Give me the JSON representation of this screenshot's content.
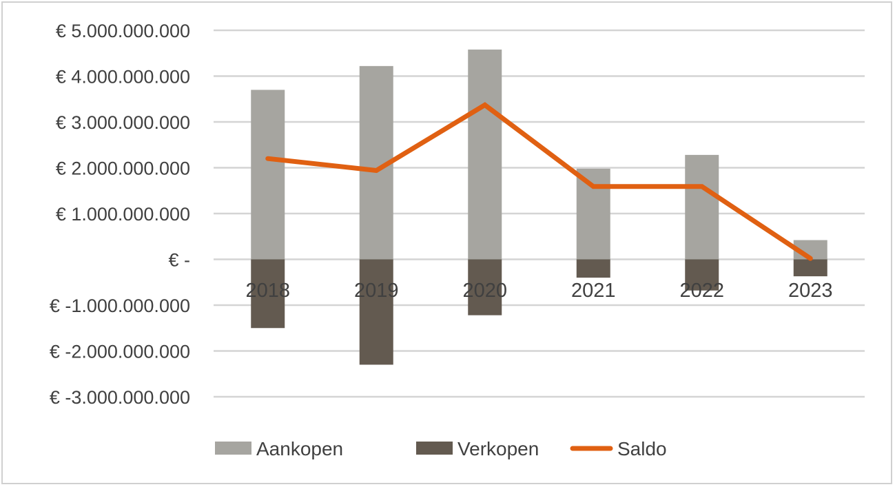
{
  "chart_data": {
    "type": "bar",
    "title": "",
    "xlabel": "",
    "ylabel": "",
    "categories": [
      "2018",
      "2019",
      "2020",
      "2021",
      "2022",
      "2023"
    ],
    "series": [
      {
        "name": "Aankopen",
        "type": "bar",
        "color": "#a6a5a0",
        "values": [
          3700000000,
          4220000000,
          4580000000,
          1980000000,
          2280000000,
          420000000
        ]
      },
      {
        "name": "Verkopen",
        "type": "bar",
        "color": "#635a50",
        "values": [
          -1500000000,
          -2300000000,
          -1220000000,
          -400000000,
          -680000000,
          -370000000
        ]
      },
      {
        "name": "Saldo",
        "type": "line",
        "color": "#e06012",
        "values": [
          2200000000,
          1940000000,
          3370000000,
          1590000000,
          1590000000,
          20000000
        ]
      }
    ],
    "ylim": [
      -3000000000,
      5000000000
    ],
    "yticks": [
      5000000000,
      4000000000,
      3000000000,
      2000000000,
      1000000000,
      0,
      -1000000000,
      -2000000000,
      -3000000000
    ],
    "ytick_labels": [
      "€ 5.000.000.000",
      "€ 4.000.000.000",
      "€ 3.000.000.000",
      "€ 2.000.000.000",
      "€ 1.000.000.000",
      "€ -",
      "€ -1.000.000.000",
      "€ -2.000.000.000",
      "€ -3.000.000.000"
    ],
    "grid": true,
    "legend_position": "bottom"
  },
  "legend": {
    "items": [
      {
        "label": "Aankopen"
      },
      {
        "label": "Verkopen"
      },
      {
        "label": "Saldo"
      }
    ]
  }
}
